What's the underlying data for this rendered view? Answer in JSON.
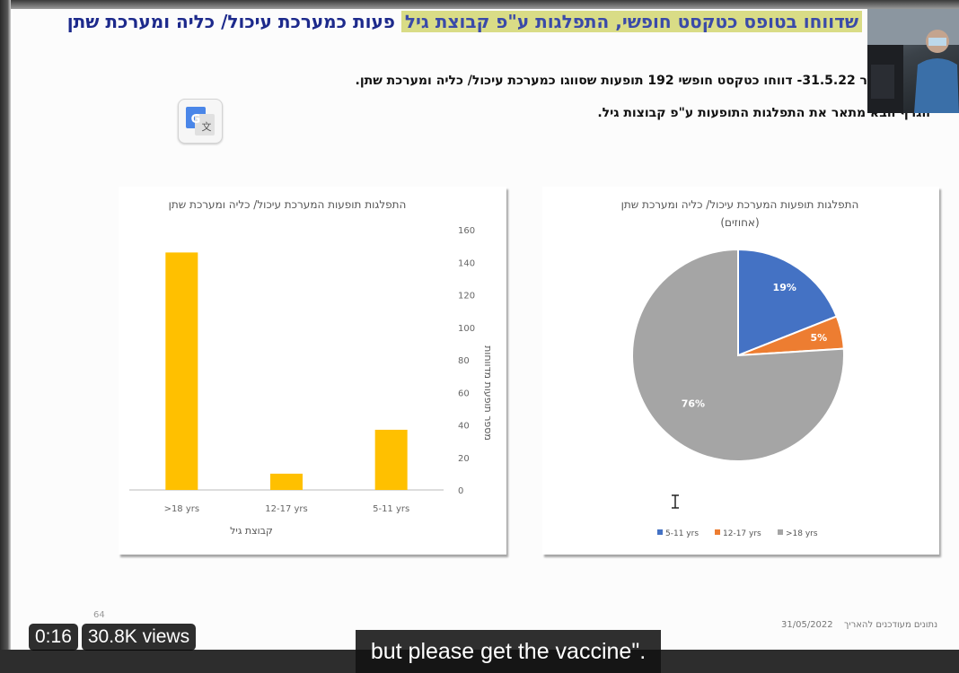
{
  "slide": {
    "title_main": "פעות כמערכת עיכול/ כליה ומערכת שתן",
    "title_highlight": "שדווחו בטופס כטקסט חופשי, התפלגות ע\"פ קבוצת גיל",
    "subtitle1": "ר 31.5.22- דווחו כטקסט חופשי 192 תופעות שסווגו כמערכת עיכול/ כליה ומערכת שתן.",
    "subtitle2": "הגרף הבא מתאר את התפלגות התופעות ע\"פ קבוצות גיל.",
    "footer_date": "31/05/2022",
    "footer_text": "נתונים מעודכנים להאריך",
    "page_number": "64"
  },
  "translate_button": {
    "icon": "google-translate-icon",
    "glyph": "G"
  },
  "video": {
    "time": "0:16",
    "views": "30.8K views",
    "caption": "but please get the vaccine\"."
  },
  "chart_data": [
    {
      "type": "bar",
      "title": "התפלגות תופעות המערכת עיכול/ כליה ומערכת שתן",
      "categories": [
        ">18 yrs",
        "12-17 yrs",
        "5-11 yrs"
      ],
      "values": [
        146,
        10,
        37
      ],
      "xlabel": "קבוצת גיל",
      "ylabel": "מספר תופעות מדווחות",
      "ylim": [
        0,
        160
      ],
      "yticks": [
        0,
        20,
        40,
        60,
        80,
        100,
        120,
        140,
        160
      ],
      "color": "#FFC000",
      "grid": false
    },
    {
      "type": "pie",
      "title": "התפלגות תופעות המערכת עיכול/ כליה ומערכת שתן",
      "subtitle": "(אחוזים)",
      "labels": [
        "5-11 yrs",
        "12-17 yrs",
        ">18 yrs"
      ],
      "values": [
        19,
        5,
        76
      ],
      "data_labels": [
        "19%",
        "5%",
        "76%"
      ],
      "colors": [
        "#4472C4",
        "#ED7D31",
        "#A5A5A5"
      ],
      "legend": "bottom"
    }
  ]
}
